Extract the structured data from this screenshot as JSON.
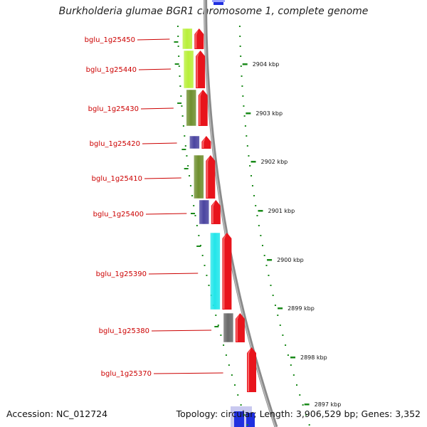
{
  "title": "Burkholderia glumae BGR1 chromosome 1, complete genome",
  "footer": {
    "accession": "Accession: NC_012724",
    "summary": "Topology: circular; Length: 3,906,529 bp; Genes: 3,352"
  },
  "genes": [
    {
      "label": "bglu_1g25450",
      "color": "#b9f03a"
    },
    {
      "label": "bglu_1g25440",
      "color": "#b9f03a"
    },
    {
      "label": "bglu_1g25430",
      "color": "#6f8f2f"
    },
    {
      "label": "bglu_1g25420",
      "color": "#4a44a0"
    },
    {
      "label": "bglu_1g25410",
      "color": "#6f8f2f"
    },
    {
      "label": "bglu_1g25400",
      "color": "#4a44a0"
    },
    {
      "label": "bglu_1g25390",
      "color": "#22e6ea"
    },
    {
      "label": "bglu_1g25380",
      "color": "#6a6a6a"
    },
    {
      "label": "bglu_1g25370",
      "color": ""
    }
  ],
  "scale_ticks": [
    "2904 kbp",
    "2903 kbp",
    "2902 kbp",
    "2901 kbp",
    "2900 kbp",
    "2899 kbp",
    "2898 kbp",
    "2897 kbp"
  ],
  "colors": {
    "forward_strand": "#e8141c",
    "backbone": "#8a8a8a",
    "gene_label": "#cc0000",
    "ticks": "#1a8a1a",
    "label_line": "#cc0000"
  }
}
